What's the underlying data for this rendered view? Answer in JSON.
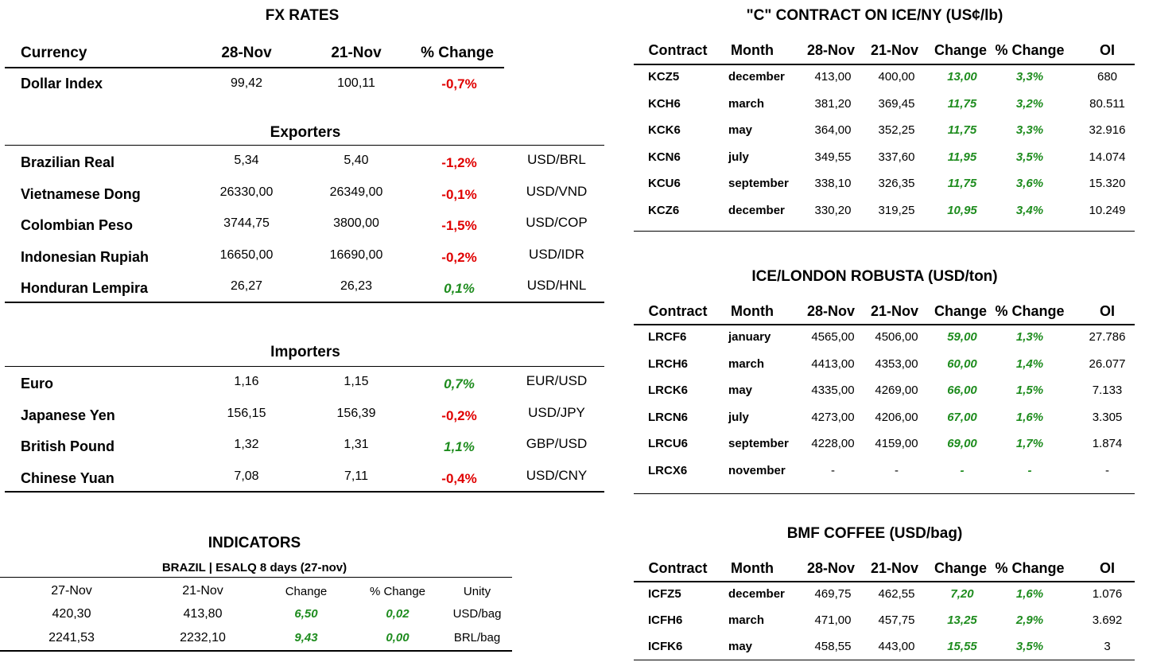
{
  "fx": {
    "title": "FX RATES",
    "headers": [
      "Currency",
      "28-Nov",
      "21-Nov",
      "% Change"
    ],
    "dollar": {
      "name": "Dollar Index",
      "v1": "99,42",
      "v2": "100,11",
      "chg": "-0,7%",
      "dir": "neg"
    },
    "exporters_title": "Exporters",
    "exporters": [
      {
        "name": "Brazilian Real",
        "v1": "5,34",
        "v2": "5,40",
        "chg": "-1,2%",
        "dir": "neg",
        "pair": "USD/BRL"
      },
      {
        "name": "Vietnamese Dong",
        "v1": "26330,00",
        "v2": "26349,00",
        "chg": "-0,1%",
        "dir": "neg",
        "pair": "USD/VND"
      },
      {
        "name": "Colombian Peso",
        "v1": "3744,75",
        "v2": "3800,00",
        "chg": "-1,5%",
        "dir": "neg",
        "pair": "USD/COP"
      },
      {
        "name": "Indonesian Rupiah",
        "v1": "16650,00",
        "v2": "16690,00",
        "chg": "-0,2%",
        "dir": "neg",
        "pair": "USD/IDR"
      },
      {
        "name": "Honduran Lempira",
        "v1": "26,27",
        "v2": "26,23",
        "chg": "0,1%",
        "dir": "pos",
        "pair": "USD/HNL"
      }
    ],
    "importers_title": "Importers",
    "importers": [
      {
        "name": "Euro",
        "v1": "1,16",
        "v2": "1,15",
        "chg": "0,7%",
        "dir": "pos",
        "pair": "EUR/USD"
      },
      {
        "name": "Japanese Yen",
        "v1": "156,15",
        "v2": "156,39",
        "chg": "-0,2%",
        "dir": "neg",
        "pair": "USD/JPY"
      },
      {
        "name": "British Pound",
        "v1": "1,32",
        "v2": "1,31",
        "chg": "1,1%",
        "dir": "pos",
        "pair": "GBP/USD"
      },
      {
        "name": "Chinese Yuan",
        "v1": "7,08",
        "v2": "7,11",
        "chg": "-0,4%",
        "dir": "neg",
        "pair": "USD/CNY"
      }
    ]
  },
  "indicators": {
    "title": "INDICATORS",
    "subtitle": "BRAZIL | ESALQ 8 days (27-nov)",
    "headers": [
      "27-Nov",
      "21-Nov",
      "Change",
      "% Change",
      "Unity"
    ],
    "rows": [
      [
        "420,30",
        "413,80",
        "6,50",
        "0,02",
        "USD/bag"
      ],
      [
        "2241,53",
        "2232,10",
        "9,43",
        "0,00",
        "BRL/bag"
      ]
    ]
  },
  "ice_ny": {
    "title": "\"C\" CONTRACT ON ICE/NY (US¢/lb)",
    "headers": [
      "Contract",
      "Month",
      "28-Nov",
      "21-Nov",
      "Change",
      "% Change",
      "OI"
    ],
    "rows": [
      [
        "KCZ5",
        "december",
        "413,00",
        "400,00",
        "13,00",
        "3,3%",
        "680"
      ],
      [
        "KCH6",
        "march",
        "381,20",
        "369,45",
        "11,75",
        "3,2%",
        "80.511"
      ],
      [
        "KCK6",
        "may",
        "364,00",
        "352,25",
        "11,75",
        "3,3%",
        "32.916"
      ],
      [
        "KCN6",
        "july",
        "349,55",
        "337,60",
        "11,95",
        "3,5%",
        "14.074"
      ],
      [
        "KCU6",
        "september",
        "338,10",
        "326,35",
        "11,75",
        "3,6%",
        "15.320"
      ],
      [
        "KCZ6",
        "december",
        "330,20",
        "319,25",
        "10,95",
        "3,4%",
        "10.249"
      ]
    ]
  },
  "ice_london": {
    "title": "ICE/LONDON ROBUSTA (USD/ton)",
    "headers": [
      "Contract",
      "Month",
      "28-Nov",
      "21-Nov",
      "Change",
      "% Change",
      "OI"
    ],
    "rows": [
      [
        "LRCF6",
        "january",
        "4565,00",
        "4506,00",
        "59,00",
        "1,3%",
        "27.786"
      ],
      [
        "LRCH6",
        "march",
        "4413,00",
        "4353,00",
        "60,00",
        "1,4%",
        "26.077"
      ],
      [
        "LRCK6",
        "may",
        "4335,00",
        "4269,00",
        "66,00",
        "1,5%",
        "7.133"
      ],
      [
        "LRCN6",
        "july",
        "4273,00",
        "4206,00",
        "67,00",
        "1,6%",
        "3.305"
      ],
      [
        "LRCU6",
        "september",
        "4228,00",
        "4159,00",
        "69,00",
        "1,7%",
        "1.874"
      ],
      [
        "LRCX6",
        "november",
        "-",
        "-",
        "-",
        "-",
        "-"
      ]
    ]
  },
  "bmf": {
    "title": "BMF COFFEE (USD/bag)",
    "headers": [
      "Contract",
      "Month",
      "28-Nov",
      "21-Nov",
      "Change",
      "% Change",
      "OI"
    ],
    "rows": [
      [
        "ICFZ5",
        "december",
        "469,75",
        "462,55",
        "7,20",
        "1,6%",
        "1.076"
      ],
      [
        "ICFH6",
        "march",
        "471,00",
        "457,75",
        "13,25",
        "2,9%",
        "3.692"
      ],
      [
        "ICFK6",
        "may",
        "458,55",
        "443,00",
        "15,55",
        "3,5%",
        "3"
      ]
    ]
  },
  "colors": {
    "negative": "#e00000",
    "positive": "#1e8c1e"
  }
}
